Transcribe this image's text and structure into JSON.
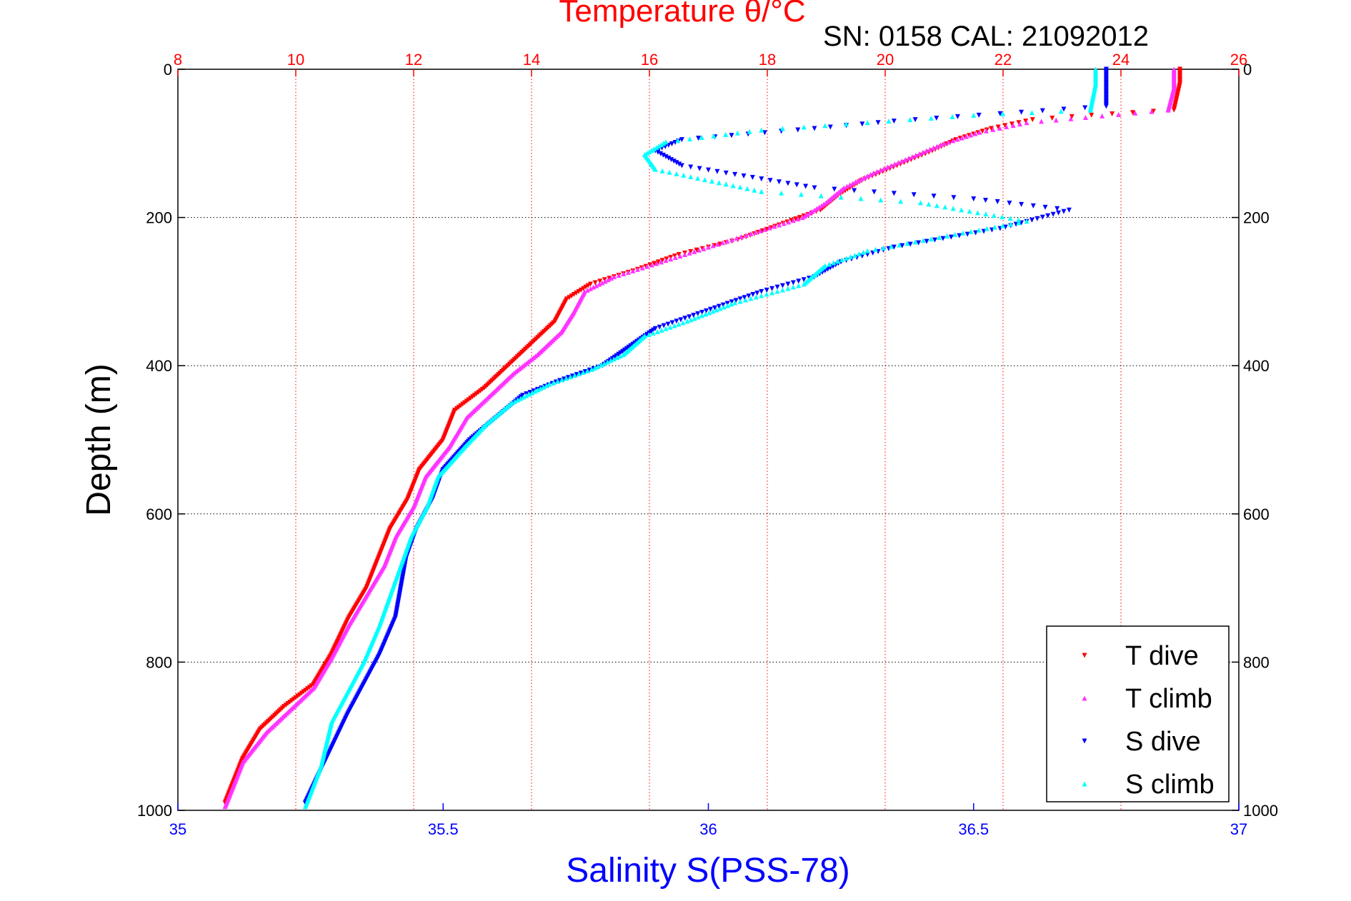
{
  "chart_data": {
    "type": "scatter",
    "title": "Temperature θ/°C",
    "subtitle": "SN: 0158  CAL: 21092012",
    "xlabel": "Salinity S(PSS-78)",
    "ylabel": "Depth (m)",
    "x_top_label": "Temperature θ/°C",
    "x_bottom_range": [
      35,
      37
    ],
    "x_top_range": [
      8,
      26
    ],
    "y_range": [
      0,
      1000
    ],
    "y_reversed": true,
    "grid": true,
    "legend_position": "bottom-right",
    "x_bottom_ticks": [
      "35",
      "35.5",
      "36",
      "36.5",
      "37"
    ],
    "x_top_ticks": [
      "8",
      "10",
      "12",
      "14",
      "16",
      "18",
      "20",
      "22",
      "24",
      "26"
    ],
    "y_ticks": [
      "0",
      "200",
      "400",
      "600",
      "800",
      "1000"
    ],
    "colors": {
      "t_dive": "#ff0000",
      "t_climb": "#ff33ff",
      "s_dive": "#0000ff",
      "s_climb": "#00ffff",
      "top_axis": "#ff0000",
      "bottom_axis": "#0000ff",
      "grid": "#ff0000"
    },
    "series": [
      {
        "name": "T dive",
        "axis": "temperature",
        "color": "#ff0000",
        "marker": "triangle-down",
        "points": [
          [
            25.0,
            0
          ],
          [
            25.0,
            20
          ],
          [
            24.9,
            55
          ],
          [
            23.5,
            62
          ],
          [
            22.5,
            68
          ],
          [
            21.8,
            80
          ],
          [
            21.2,
            95
          ],
          [
            20.8,
            110
          ],
          [
            20.2,
            130
          ],
          [
            19.6,
            150
          ],
          [
            19.2,
            170
          ],
          [
            18.9,
            190
          ],
          [
            18.2,
            210
          ],
          [
            17.5,
            230
          ],
          [
            16.5,
            250
          ],
          [
            15.8,
            270
          ],
          [
            15.0,
            290
          ],
          [
            14.6,
            310
          ],
          [
            14.4,
            340
          ],
          [
            14.0,
            370
          ],
          [
            13.6,
            400
          ],
          [
            13.2,
            430
          ],
          [
            12.7,
            460
          ],
          [
            12.5,
            500
          ],
          [
            12.1,
            540
          ],
          [
            11.9,
            580
          ],
          [
            11.6,
            620
          ],
          [
            11.4,
            660
          ],
          [
            11.2,
            700
          ],
          [
            10.9,
            740
          ],
          [
            10.6,
            790
          ],
          [
            10.3,
            830
          ],
          [
            9.8,
            860
          ],
          [
            9.4,
            890
          ],
          [
            9.1,
            930
          ],
          [
            8.8,
            990
          ]
        ]
      },
      {
        "name": "T climb",
        "axis": "temperature",
        "color": "#ff33ff",
        "marker": "triangle-up",
        "points": [
          [
            24.9,
            0
          ],
          [
            24.9,
            25
          ],
          [
            24.8,
            55
          ],
          [
            23.4,
            65
          ],
          [
            22.4,
            72
          ],
          [
            21.6,
            85
          ],
          [
            21.0,
            100
          ],
          [
            20.4,
            120
          ],
          [
            19.8,
            140
          ],
          [
            19.3,
            160
          ],
          [
            19.0,
            180
          ],
          [
            18.6,
            200
          ],
          [
            17.8,
            220
          ],
          [
            17.0,
            240
          ],
          [
            16.2,
            260
          ],
          [
            15.4,
            280
          ],
          [
            14.9,
            300
          ],
          [
            14.7,
            330
          ],
          [
            14.5,
            355
          ],
          [
            14.1,
            385
          ],
          [
            13.7,
            410
          ],
          [
            13.3,
            440
          ],
          [
            12.9,
            470
          ],
          [
            12.6,
            510
          ],
          [
            12.2,
            550
          ],
          [
            12.0,
            590
          ],
          [
            11.7,
            630
          ],
          [
            11.5,
            670
          ],
          [
            11.2,
            710
          ],
          [
            10.9,
            750
          ],
          [
            10.6,
            795
          ],
          [
            10.3,
            835
          ],
          [
            9.9,
            865
          ],
          [
            9.5,
            895
          ],
          [
            9.1,
            935
          ],
          [
            8.8,
            995
          ]
        ]
      },
      {
        "name": "S dive",
        "axis": "salinity",
        "color": "#0000ff",
        "marker": "triangle-down",
        "points": [
          [
            36.75,
            0
          ],
          [
            36.75,
            20
          ],
          [
            36.75,
            50
          ],
          [
            36.55,
            60
          ],
          [
            36.35,
            70
          ],
          [
            36.2,
            80
          ],
          [
            35.95,
            95
          ],
          [
            35.9,
            110
          ],
          [
            35.95,
            130
          ],
          [
            36.2,
            160
          ],
          [
            36.5,
            175
          ],
          [
            36.68,
            190
          ],
          [
            36.55,
            215
          ],
          [
            36.35,
            240
          ],
          [
            36.25,
            260
          ],
          [
            36.2,
            280
          ],
          [
            36.1,
            300
          ],
          [
            35.98,
            330
          ],
          [
            35.9,
            350
          ],
          [
            35.85,
            375
          ],
          [
            35.8,
            400
          ],
          [
            35.72,
            420
          ],
          [
            35.65,
            440
          ],
          [
            35.6,
            470
          ],
          [
            35.55,
            500
          ],
          [
            35.5,
            540
          ],
          [
            35.48,
            580
          ],
          [
            35.45,
            620
          ],
          [
            35.43,
            660
          ],
          [
            35.42,
            700
          ],
          [
            35.41,
            740
          ],
          [
            35.38,
            790
          ],
          [
            35.35,
            830
          ],
          [
            35.32,
            870
          ],
          [
            35.28,
            930
          ],
          [
            35.24,
            990
          ]
        ]
      },
      {
        "name": "S climb",
        "axis": "salinity",
        "color": "#00ffff",
        "marker": "triangle-up",
        "points": [
          [
            36.73,
            0
          ],
          [
            36.73,
            20
          ],
          [
            36.72,
            55
          ],
          [
            36.5,
            62
          ],
          [
            36.3,
            72
          ],
          [
            36.1,
            82
          ],
          [
            35.92,
            98
          ],
          [
            35.88,
            115
          ],
          [
            35.9,
            135
          ],
          [
            36.1,
            165
          ],
          [
            36.4,
            180
          ],
          [
            36.6,
            205
          ],
          [
            36.45,
            225
          ],
          [
            36.3,
            245
          ],
          [
            36.22,
            265
          ],
          [
            36.18,
            290
          ],
          [
            36.05,
            315
          ],
          [
            35.96,
            340
          ],
          [
            35.88,
            360
          ],
          [
            35.84,
            385
          ],
          [
            35.78,
            405
          ],
          [
            35.7,
            425
          ],
          [
            35.63,
            450
          ],
          [
            35.58,
            480
          ],
          [
            35.54,
            510
          ],
          [
            35.49,
            550
          ],
          [
            35.47,
            590
          ],
          [
            35.44,
            630
          ],
          [
            35.42,
            670
          ],
          [
            35.4,
            710
          ],
          [
            35.38,
            750
          ],
          [
            35.35,
            800
          ],
          [
            35.32,
            840
          ],
          [
            35.29,
            880
          ],
          [
            35.27,
            940
          ],
          [
            35.24,
            995
          ]
        ]
      }
    ]
  }
}
